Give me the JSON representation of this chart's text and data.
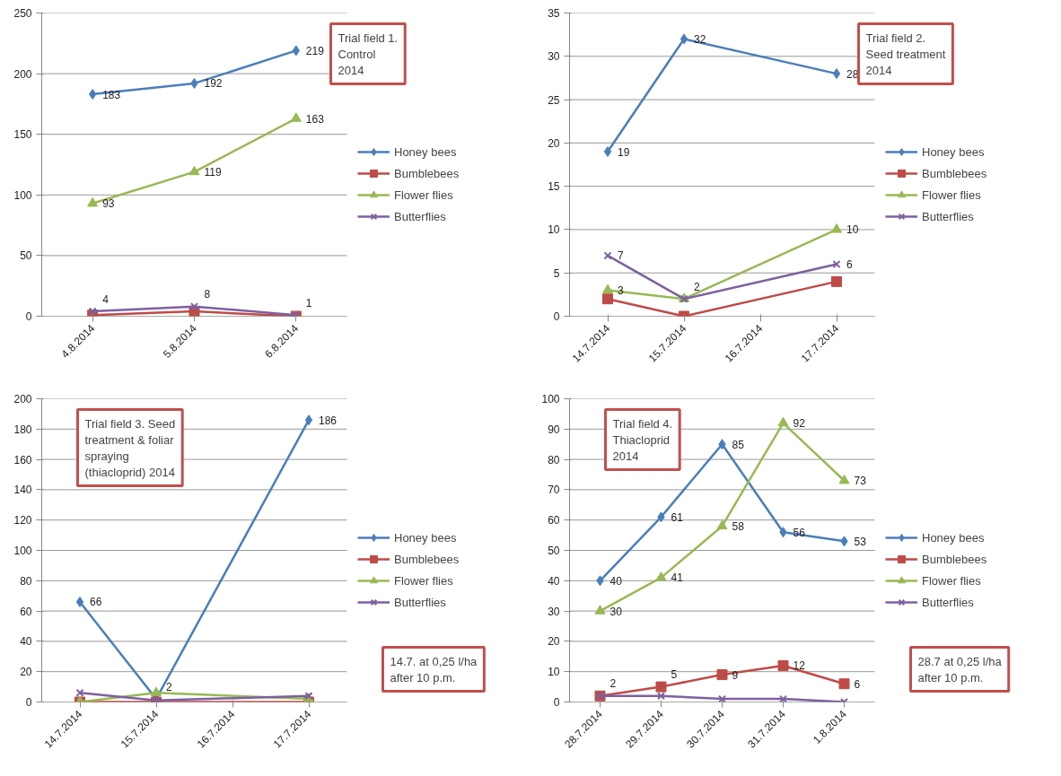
{
  "chart_data": [
    {
      "type": "line",
      "title": "Trial field 1.\nControl\n2014",
      "categories": [
        "4.8.2014",
        "5.8.2014",
        "6.8.2014"
      ],
      "ylim": [
        0,
        250
      ],
      "yticks": [
        0,
        50,
        100,
        150,
        200,
        250
      ],
      "grid": "y",
      "legend": "right",
      "series": [
        {
          "name": "Honey bees",
          "color": "#4a7ebb",
          "marker": "diamond",
          "values": [
            183,
            192,
            219
          ],
          "value_labels": [
            "183",
            "192",
            "219"
          ]
        },
        {
          "name": "Bumblebees",
          "color": "#be4b48",
          "marker": "square",
          "values": [
            1,
            4,
            0
          ]
        },
        {
          "name": "Flower flies",
          "color": "#98b954",
          "marker": "triangle",
          "values": [
            93,
            119,
            163
          ],
          "value_labels": [
            "93",
            "119",
            "163"
          ]
        },
        {
          "name": "Butterflies",
          "color": "#7d60a0",
          "marker": "cross",
          "values": [
            4,
            8,
            1
          ],
          "value_labels": [
            "4",
            "8",
            "1"
          ]
        }
      ]
    },
    {
      "type": "line",
      "title": "Trial field 2.\nSeed treatment\n2014",
      "categories": [
        "14.7.2014",
        "15.7.2014",
        "16.7.2014",
        "17.7.2014"
      ],
      "ylim": [
        0,
        35
      ],
      "yticks": [
        0,
        5,
        10,
        15,
        20,
        25,
        30,
        35
      ],
      "grid": "y",
      "legend": "right",
      "series": [
        {
          "name": "Honey bees",
          "color": "#4a7ebb",
          "marker": "diamond",
          "values": [
            19,
            32,
            null,
            28
          ],
          "value_labels": [
            "19",
            "32",
            null,
            "28"
          ]
        },
        {
          "name": "Bumblebees",
          "color": "#be4b48",
          "marker": "square",
          "values": [
            2,
            0,
            null,
            4
          ]
        },
        {
          "name": "Flower flies",
          "color": "#98b954",
          "marker": "triangle",
          "values": [
            3,
            2,
            null,
            10
          ],
          "value_labels": [
            "3",
            "2",
            null,
            "10"
          ]
        },
        {
          "name": "Butterflies",
          "color": "#7d60a0",
          "marker": "cross",
          "values": [
            7,
            2,
            null,
            6
          ],
          "value_labels": [
            "7",
            null,
            null,
            "6"
          ]
        }
      ]
    },
    {
      "type": "line",
      "title": "Trial field 3. Seed\ntreatment & foliar\nspraying\n(thiacloprid) 2014",
      "annotations": [
        "14.7. at 0,25 l/ha\nafter 10 p.m."
      ],
      "categories": [
        "14.7.2014",
        "15.7.2014",
        "16.7.2014",
        "17.7.2014"
      ],
      "ylim": [
        0,
        200
      ],
      "yticks": [
        0,
        20,
        40,
        60,
        80,
        100,
        120,
        140,
        160,
        180,
        200
      ],
      "grid": "y",
      "legend": "right",
      "series": [
        {
          "name": "Honey bees",
          "color": "#4a7ebb",
          "marker": "diamond",
          "values": [
            66,
            2,
            null,
            186
          ],
          "value_labels": [
            "66",
            "2",
            null,
            "186"
          ]
        },
        {
          "name": "Bumblebees",
          "color": "#be4b48",
          "marker": "square",
          "values": [
            0,
            0,
            null,
            0
          ]
        },
        {
          "name": "Flower flies",
          "color": "#98b954",
          "marker": "triangle",
          "values": [
            0,
            6,
            null,
            2
          ]
        },
        {
          "name": "Butterflies",
          "color": "#7d60a0",
          "marker": "cross",
          "values": [
            6,
            1,
            null,
            4
          ]
        }
      ]
    },
    {
      "type": "line",
      "title": "Trial field 4.\nThiacloprid\n2014",
      "annotations": [
        "28.7 at 0,25 l/ha\nafter 10 p.m."
      ],
      "categories": [
        "28.7.2014",
        "29.7.2014",
        "30.7.2014",
        "31.7.2014",
        "1.8.2014"
      ],
      "ylim": [
        0,
        100
      ],
      "yticks": [
        0,
        10,
        20,
        30,
        40,
        50,
        60,
        70,
        80,
        90,
        100
      ],
      "grid": "y",
      "legend": "right",
      "series": [
        {
          "name": "Honey bees",
          "color": "#4a7ebb",
          "marker": "diamond",
          "values": [
            40,
            61,
            85,
            56,
            53
          ],
          "value_labels": [
            "40",
            "61",
            "85",
            "56",
            "53"
          ]
        },
        {
          "name": "Bumblebees",
          "color": "#be4b48",
          "marker": "square",
          "values": [
            2,
            5,
            9,
            12,
            6
          ],
          "value_labels": [
            "2",
            "5",
            "9",
            "12",
            "6"
          ]
        },
        {
          "name": "Flower flies",
          "color": "#98b954",
          "marker": "triangle",
          "values": [
            30,
            41,
            58,
            92,
            73
          ],
          "value_labels": [
            "30",
            "41",
            "58",
            "92",
            "73"
          ]
        },
        {
          "name": "Butterflies",
          "color": "#7d60a0",
          "marker": "cross",
          "values": [
            2,
            2,
            1,
            1,
            0
          ]
        }
      ]
    }
  ]
}
